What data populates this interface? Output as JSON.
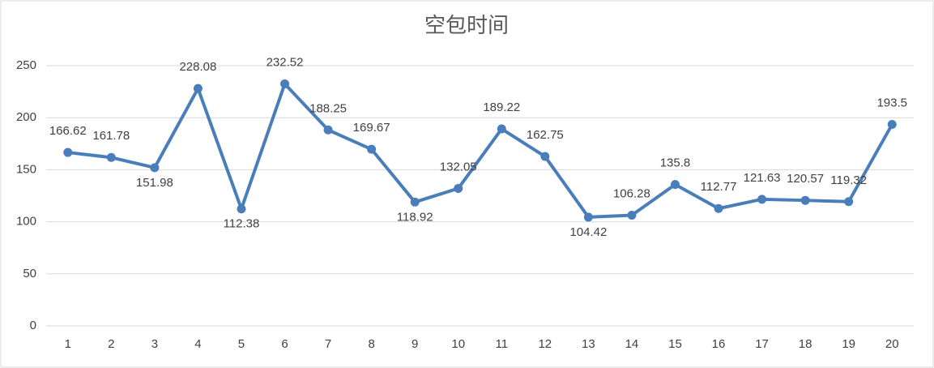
{
  "chart_data": {
    "type": "line",
    "title": "空包时间",
    "categories": [
      "1",
      "2",
      "3",
      "4",
      "5",
      "6",
      "7",
      "8",
      "9",
      "10",
      "11",
      "12",
      "13",
      "14",
      "15",
      "16",
      "17",
      "18",
      "19",
      "20"
    ],
    "series": [
      {
        "name": "空包时间",
        "color": "#4a7ebb",
        "values": [
          166.62,
          161.78,
          151.98,
          228.08,
          112.38,
          232.52,
          188.25,
          169.67,
          118.92,
          132.05,
          189.22,
          162.75,
          104.42,
          106.28,
          135.8,
          112.77,
          121.63,
          120.57,
          119.32,
          193.5
        ]
      }
    ],
    "ylim": [
      0,
      250
    ],
    "yticks": [
      0,
      50,
      100,
      150,
      200,
      250
    ],
    "grid": true
  }
}
